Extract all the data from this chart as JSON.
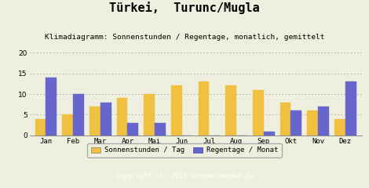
{
  "title": "Türkei,  Turunc/Mugla",
  "subtitle": "Klimadiagramm: Sonnenstunden / Regentage, monatlich, gemittelt",
  "months": [
    "Jan",
    "Feb",
    "Mar",
    "Apr",
    "Mai",
    "Jun",
    "Jul",
    "Aug",
    "Sep",
    "Okt",
    "Nov",
    "Dez"
  ],
  "sunshine": [
    4,
    5,
    7,
    9,
    10,
    12,
    13,
    12,
    11,
    8,
    6,
    4
  ],
  "raindays": [
    14,
    10,
    8,
    3,
    3,
    0,
    0,
    0,
    1,
    6,
    7,
    13
  ],
  "sunshine_color": "#F0C040",
  "raindays_color": "#6666CC",
  "background_color": "#EFEFDF",
  "ylim": [
    0,
    20
  ],
  "yticks": [
    0,
    5,
    10,
    15,
    20
  ],
  "legend_sunshine": "Sonnenstunden / Tag",
  "legend_raindays": "Regentage / Monat",
  "copyright": "Copyright (C) 2010 sonnenlaender.de",
  "title_fontsize": 11,
  "subtitle_fontsize": 6.8,
  "axis_fontsize": 6.5,
  "legend_fontsize": 6.5,
  "copyright_fontsize": 6.0
}
